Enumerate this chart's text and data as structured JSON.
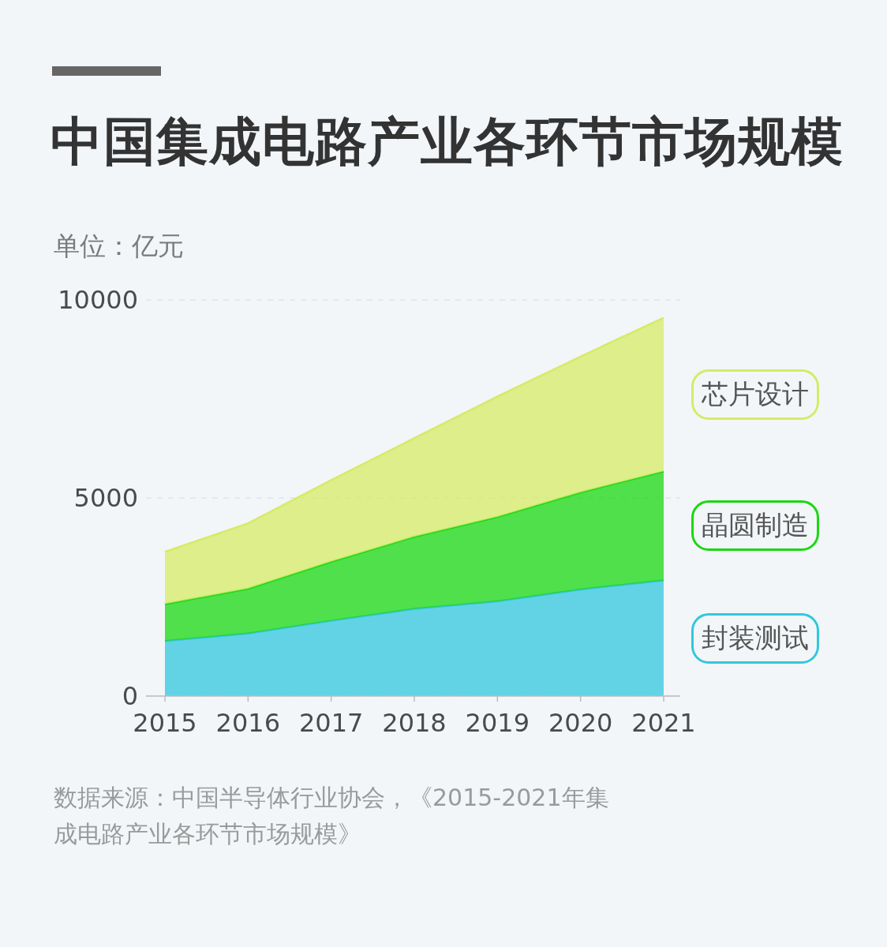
{
  "chart_data": {
    "type": "area",
    "stacked": true,
    "title": "中国集成电路产业各环节市场规模",
    "ylabel": "单位：亿元",
    "categories": [
      "2015",
      "2016",
      "2017",
      "2018",
      "2019",
      "2020",
      "2021"
    ],
    "series": [
      {
        "name": "封装测试",
        "color": "#32c7dd",
        "values": [
          1390,
          1580,
          1900,
          2200,
          2390,
          2690,
          2920
        ]
      },
      {
        "name": "晶圆制造",
        "color": "#1ad810",
        "values": [
          930,
          1130,
          1490,
          1820,
          2130,
          2450,
          2750
        ]
      },
      {
        "name": "芯片设计",
        "color": "#d6eb65",
        "values": [
          1320,
          1650,
          2060,
          2490,
          3040,
          3430,
          3880
        ]
      }
    ],
    "ylim": [
      0,
      10000
    ],
    "yticks": [
      0,
      5000,
      10000
    ],
    "grid": "y",
    "legend": "right",
    "annotations": [
      "数据来源：中国半导体行业协会，《2015-2021年集成电路产业各环节市场规模》"
    ]
  }
}
